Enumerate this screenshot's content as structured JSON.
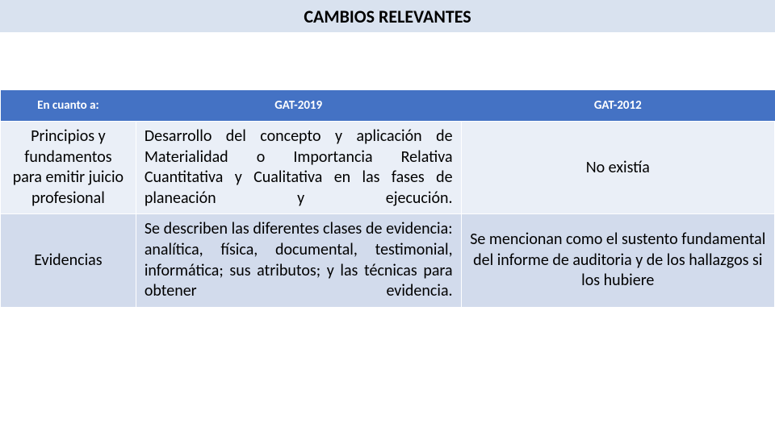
{
  "title": "CAMBIOS RELEVANTES",
  "title_bg": "#d9e2ef",
  "title_color": "#000000",
  "title_fontsize": 22,
  "header_bg": "#4472c4",
  "header_color": "#ffffff",
  "header_fontsize": 15,
  "body_fontsize": 20,
  "body_color": "#000000",
  "row_alt_bg_0": "#eaeff7",
  "row_alt_bg_1": "#d2dbec",
  "columns": [
    "En cuanto a:",
    "GAT-2019",
    "GAT-2012"
  ],
  "col_widths": [
    "17.5%",
    "42%",
    "40.5%"
  ],
  "rows": [
    {
      "c0": "Principios y fundamentos para emitir juicio profesional",
      "c1": "Desarrollo del concepto y aplicación de Materialidad o Importancia Relativa Cuantitativa y Cualitativa en las fases de planeación y ejecución.",
      "c2": "No existía"
    },
    {
      "c0": "Evidencias",
      "c1": "Se describen las diferentes clases de evidencia: analítica, física, documental, testimonial, informática; sus atributos; y las técnicas para obtener evidencia.",
      "c2": "Se mencionan como el sustento fundamental del informe de auditoria y de los hallazgos si los hubiere"
    }
  ]
}
